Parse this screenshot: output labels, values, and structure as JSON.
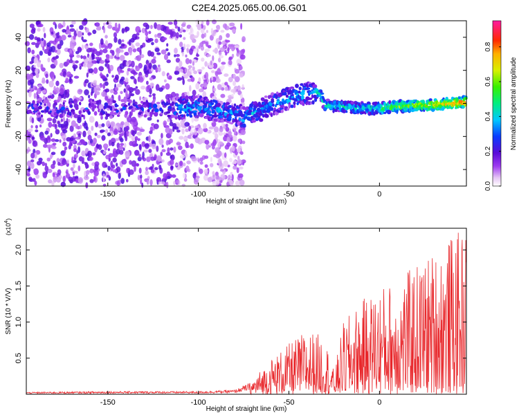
{
  "title": "C2E4.2025.065.00.06.G01",
  "colors": {
    "snr_line": "#e8262a",
    "frame": "#000000"
  },
  "chart_data": [
    {
      "type": "heatmap",
      "xlabel": "Height of straight line (km)",
      "ylabel": "Frequency (Hz)",
      "xlim": [
        -195,
        48
      ],
      "ylim": [
        -50,
        50
      ],
      "xticks": [
        -150,
        -100,
        -50,
        0
      ],
      "yticks": [
        -40,
        -20,
        0,
        20,
        40
      ],
      "colorbar": {
        "label": "Normalized spectral amplitude",
        "range": [
          0.0,
          0.95
        ],
        "ticks": [
          0.0,
          0.2,
          0.4,
          0.6,
          0.8
        ],
        "colormap": "rainbow: white-violet-purple-blue-cyan-green-yellow-orange-red-magenta"
      },
      "ridge": {
        "x": [
          -113,
          -100,
          -90,
          -80,
          -75,
          -70,
          -60,
          -50,
          -40,
          -33,
          -30,
          -20,
          -10,
          0,
          10,
          20,
          30,
          40,
          48
        ],
        "frequency": [
          -3,
          -2,
          -4,
          -6,
          -9,
          -6,
          -1,
          3,
          6,
          7,
          -1,
          -2,
          -3,
          -3,
          -2,
          -1,
          -1,
          0,
          1
        ]
      }
    },
    {
      "type": "line",
      "xlabel": "Height of straight line (km)",
      "ylabel": "SNR (10 * V/V)",
      "yscale_label": "(x10^4)",
      "xlim": [
        -195,
        48
      ],
      "ylim": [
        0,
        2.3
      ],
      "xticks": [
        -150,
        -100,
        -50,
        0
      ],
      "yticks": [
        0.5,
        1.0,
        1.5,
        2.0
      ],
      "envelope": {
        "x": [
          -195,
          -150,
          -100,
          -80,
          -72,
          -60,
          -50,
          -40,
          -30,
          -25,
          -20,
          -10,
          0,
          10,
          20,
          30,
          40,
          48
        ],
        "upper": [
          0.03,
          0.04,
          0.04,
          0.06,
          0.15,
          0.5,
          0.7,
          0.9,
          0.8,
          0.3,
          1.0,
          1.3,
          1.5,
          1.6,
          1.8,
          2.0,
          2.2,
          2.3
        ]
      }
    }
  ]
}
